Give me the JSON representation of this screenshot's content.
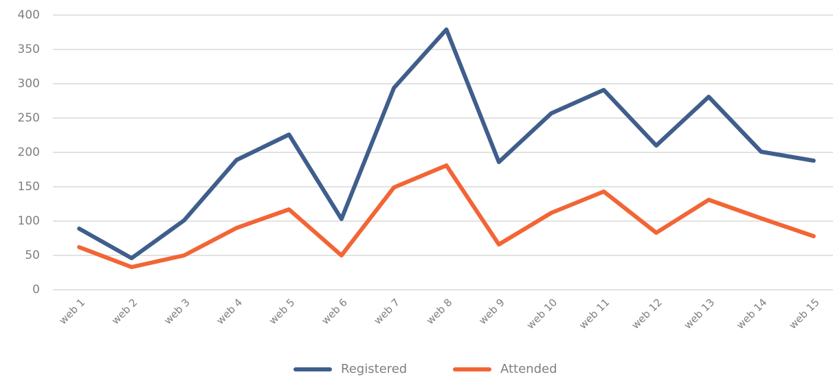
{
  "chart_data": {
    "type": "line",
    "categories": [
      "web 1",
      "web 2",
      "web 3",
      "web 4",
      "web 5",
      "web 6",
      "web 7",
      "web 8",
      "web 9",
      "web 10",
      "web 11",
      "web 12",
      "web 13",
      "web 14",
      "web 15"
    ],
    "series": [
      {
        "name": "Registered",
        "color": "#3f5e8c",
        "values": [
          89,
          46,
          101,
          189,
          226,
          103,
          294,
          379,
          186,
          257,
          291,
          210,
          281,
          201,
          188
        ]
      },
      {
        "name": "Attended",
        "color": "#f26535",
        "values": [
          62,
          33,
          50,
          90,
          117,
          50,
          149,
          181,
          66,
          112,
          143,
          83,
          131,
          104,
          78
        ]
      }
    ],
    "ylim": [
      0,
      400
    ],
    "yticks": [
      0,
      50,
      100,
      150,
      200,
      250,
      300,
      350,
      400
    ],
    "grid": true,
    "legend": "bottom"
  }
}
